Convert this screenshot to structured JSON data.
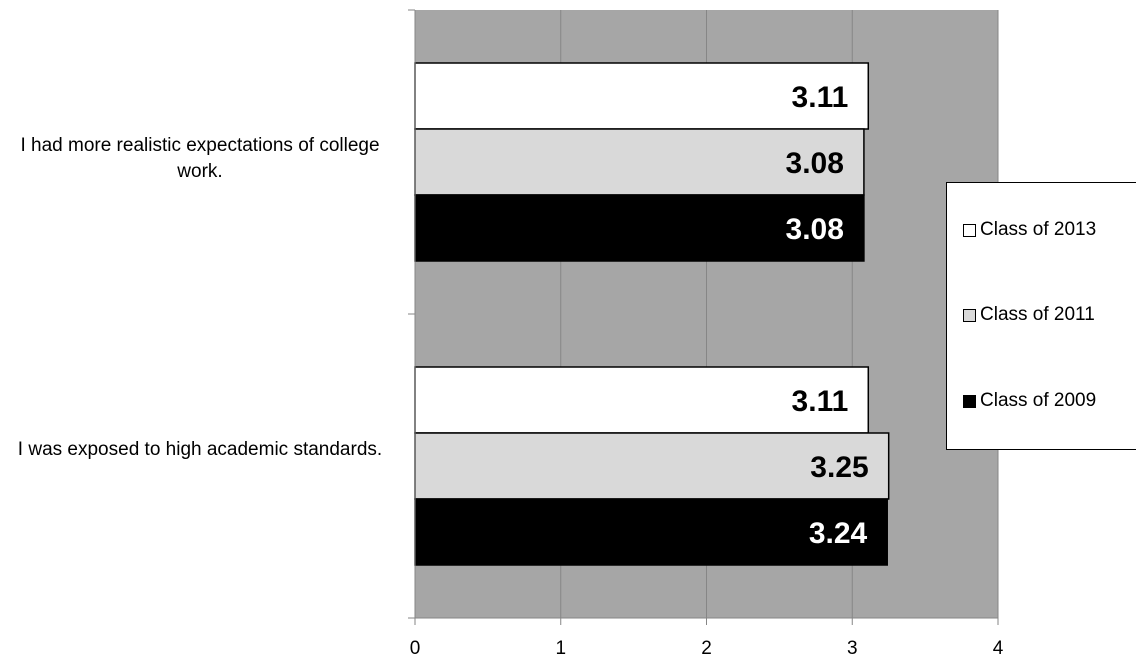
{
  "chart_data": {
    "type": "bar",
    "orientation": "horizontal",
    "categories": [
      "I had more realistic expectations of college work.",
      "I was exposed to high academic standards."
    ],
    "series": [
      {
        "name": "Class of 2013",
        "color": "#ffffff",
        "label_color": "#000000",
        "values": [
          3.11,
          3.11
        ]
      },
      {
        "name": "Class of 2011",
        "color": "#d9d9d9",
        "label_color": "#000000",
        "values": [
          3.08,
          3.25
        ]
      },
      {
        "name": "Class of 2009",
        "color": "#000000",
        "label_color": "#ffffff",
        "values": [
          3.08,
          3.24
        ]
      }
    ],
    "data_labels": [
      [
        "3.11",
        "3.08",
        "3.08"
      ],
      [
        "3.11",
        "3.25",
        "3.24"
      ]
    ],
    "xlim": [
      0,
      4
    ],
    "x_ticks": [
      "0",
      "1",
      "2",
      "3",
      "4"
    ],
    "grid": true,
    "plot_background": "#a6a6a6",
    "legend_position": "right",
    "title": "",
    "xlabel": "",
    "ylabel": ""
  }
}
